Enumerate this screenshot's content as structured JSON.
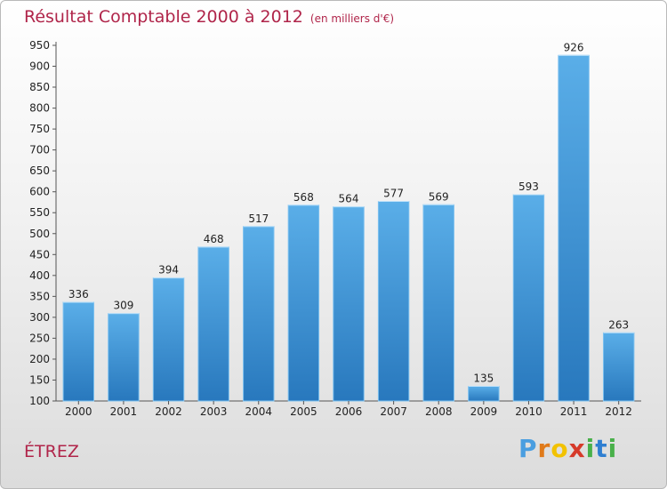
{
  "header": {
    "title": "Résultat Comptable 2000 à 2012",
    "subtitle": "(en milliers d'€)"
  },
  "commune": "ÉTREZ",
  "logo": {
    "letters": [
      "P",
      "r",
      "o",
      "x",
      "i",
      "t",
      "i"
    ],
    "colors": [
      "#4a9ee0",
      "#e07a1a",
      "#f2c200",
      "#d63a2a",
      "#49b04a",
      "#2f7fd1",
      "#49b04a"
    ]
  },
  "colors": {
    "bar": "#3d97dc",
    "title": "#b0254a"
  },
  "chart_data": {
    "type": "bar",
    "title": "Résultat Comptable 2000 à 2012",
    "categories": [
      "2000",
      "2001",
      "2002",
      "2003",
      "2004",
      "2005",
      "2006",
      "2007",
      "2008",
      "2009",
      "2010",
      "2011",
      "2012"
    ],
    "values": [
      336,
      309,
      394,
      468,
      517,
      568,
      564,
      577,
      569,
      135,
      593,
      926,
      263
    ],
    "ylim": [
      100,
      950
    ],
    "yticks": [
      100,
      150,
      200,
      250,
      300,
      350,
      400,
      450,
      500,
      550,
      600,
      650,
      700,
      750,
      800,
      850,
      900,
      950
    ],
    "grid": false,
    "data_labels": true
  }
}
